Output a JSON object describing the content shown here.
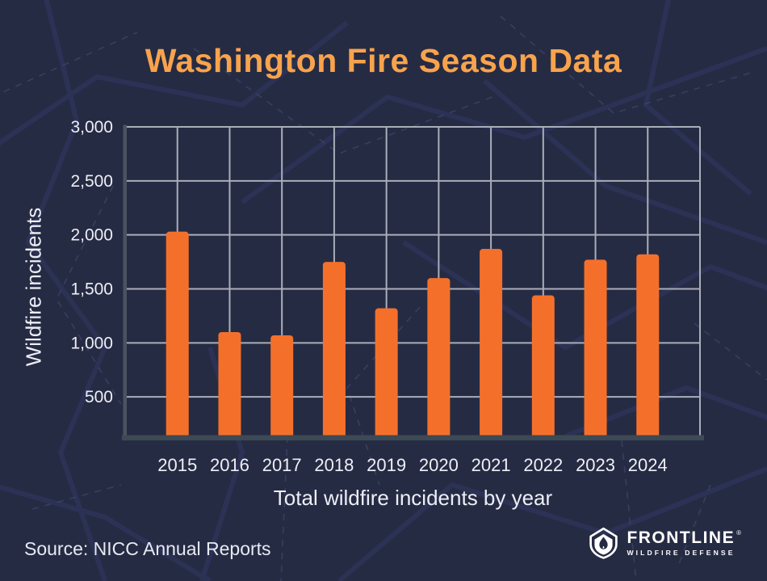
{
  "title": "Washington Fire Season Data",
  "chart_data": {
    "type": "bar",
    "title": "Washington Fire Season Data",
    "xlabel": "Total wildfire incidents by year",
    "ylabel": "Wildfire incidents",
    "categories": [
      "2015",
      "2016",
      "2017",
      "2018",
      "2019",
      "2020",
      "2021",
      "2022",
      "2023",
      "2024"
    ],
    "values": [
      2030,
      1100,
      1070,
      1750,
      1320,
      1600,
      1870,
      1440,
      1770,
      1820
    ],
    "ylim": [
      0,
      3000
    ],
    "ytick_labels": [
      "500",
      "1,000",
      "1,500",
      "2,000",
      "2,500",
      "3,000"
    ],
    "grid": true,
    "legend": "none",
    "bar_color": "#f4702a",
    "gridline_color": "#a9aeb9",
    "x_axis_color": "#3d4954",
    "y_axis_color": "#4a545f",
    "tick_label_color": "#edeff4",
    "title_color": "#f8a34c",
    "background_color": "#262b44"
  },
  "source": {
    "label": "Source: NICC Annual Reports"
  },
  "logo": {
    "name": "FRONTLINE",
    "registered": "®",
    "tagline": "WILDFIRE DEFENSE",
    "icon": "shield-flame-icon"
  }
}
